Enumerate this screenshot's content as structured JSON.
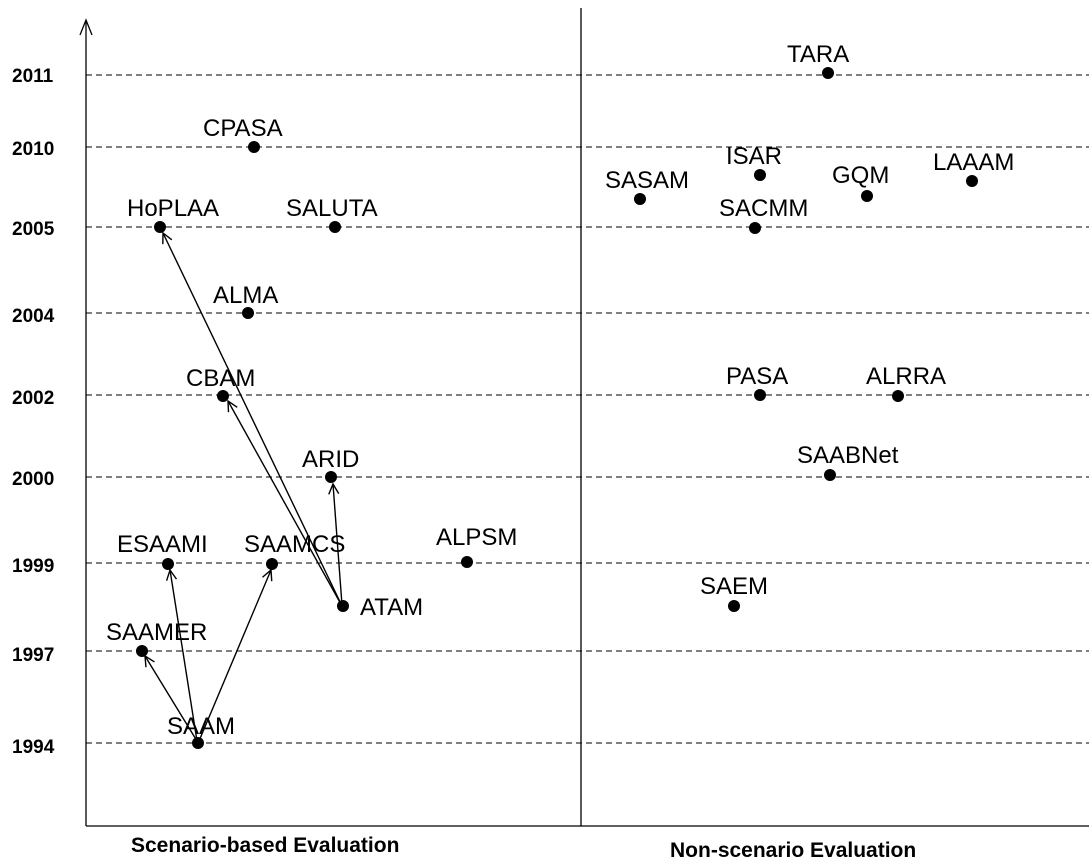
{
  "years": [
    "2011",
    "2010",
    "2005",
    "2004",
    "2002",
    "2000",
    "1999",
    "1997",
    "1994"
  ],
  "sections": {
    "left": "Scenario-based Evaluation",
    "right": "Non-scenario Evaluation"
  },
  "methods": [
    {
      "id": "TARA",
      "label": "TARA"
    },
    {
      "id": "CPASA",
      "label": "CPASA"
    },
    {
      "id": "ISAR",
      "label": "ISAR"
    },
    {
      "id": "SASAM",
      "label": "SASAM"
    },
    {
      "id": "GQM",
      "label": "GQM"
    },
    {
      "id": "LAAAM",
      "label": "LAAAM"
    },
    {
      "id": "HoPLAA",
      "label": "HoPLAA"
    },
    {
      "id": "SALUTA",
      "label": "SALUTA"
    },
    {
      "id": "SACMM",
      "label": "SACMM"
    },
    {
      "id": "ALMA",
      "label": "ALMA"
    },
    {
      "id": "CBAM",
      "label": "CBAM"
    },
    {
      "id": "PASA",
      "label": "PASA"
    },
    {
      "id": "ALRRA",
      "label": "ALRRA"
    },
    {
      "id": "ARID",
      "label": "ARID"
    },
    {
      "id": "SAABNet",
      "label": "SAABNet"
    },
    {
      "id": "ESAAMI",
      "label": "ESAAMI"
    },
    {
      "id": "SAAMCS",
      "label": "SAAMCS"
    },
    {
      "id": "ALPSM",
      "label": "ALPSM"
    },
    {
      "id": "ATAM",
      "label": "ATAM"
    },
    {
      "id": "SAEM",
      "label": "SAEM"
    },
    {
      "id": "SAAMER",
      "label": "SAAMER"
    },
    {
      "id": "SAAM",
      "label": "SAAM"
    }
  ],
  "relations": [
    {
      "from": "SAAM",
      "to": "SAAMER"
    },
    {
      "from": "SAAM",
      "to": "ESAAMI"
    },
    {
      "from": "SAAM",
      "to": "SAAMCS"
    },
    {
      "from": "ATAM",
      "to": "HoPLAA"
    },
    {
      "from": "ATAM",
      "to": "CBAM"
    },
    {
      "from": "ATAM",
      "to": "ARID"
    }
  ]
}
